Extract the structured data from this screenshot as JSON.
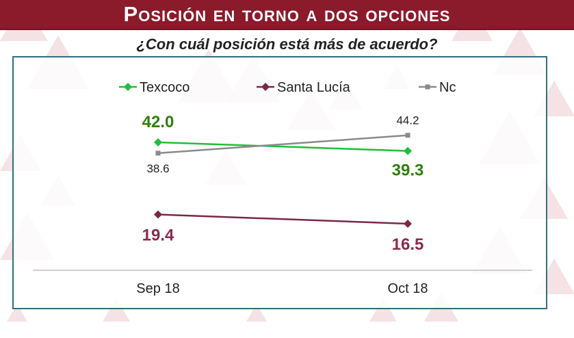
{
  "header": {
    "title": "Posición en torno a dos opciones",
    "question": "¿Con cuál posición está más de acuerdo?"
  },
  "colors": {
    "title_bar": "#8b1a2b",
    "frame_border": "#2e6f80",
    "triangle_fill": "#f3dde1"
  },
  "chart_data": {
    "type": "line",
    "title": "",
    "xlabel": "",
    "ylabel": "",
    "categories": [
      "Sep 18",
      "Oct 18"
    ],
    "ylim": [
      0,
      60
    ],
    "grid": false,
    "legend_position": "top",
    "series": [
      {
        "name": "Texcoco",
        "values": [
          42.0,
          39.3
        ],
        "labels": [
          "42.0",
          "39.3"
        ],
        "color": "#1fbf3a",
        "label_color": "#2f7f10",
        "marker": "diamond",
        "label_style": "bold"
      },
      {
        "name": "Santa Lucía",
        "values": [
          19.4,
          16.5
        ],
        "labels": [
          "19.4",
          "16.5"
        ],
        "color": "#7b2748",
        "label_color": "#8b2a4e",
        "marker": "diamond",
        "label_style": "bold"
      },
      {
        "name": "Nc",
        "values": [
          38.6,
          44.2
        ],
        "labels": [
          "38.6",
          "44.2"
        ],
        "color": "#8a8a8a",
        "label_color": "#222222",
        "marker": "square",
        "label_style": "normal"
      }
    ]
  }
}
